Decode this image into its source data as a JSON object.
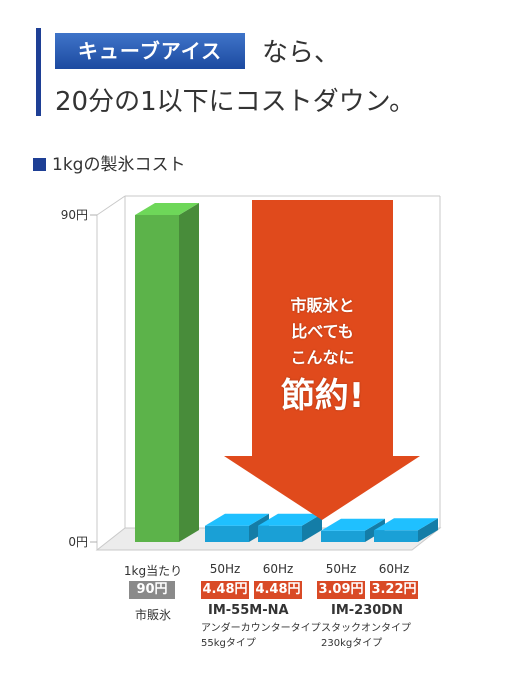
{
  "header": {
    "badge": "キューブアイス",
    "suffix": "なら、",
    "line2": "20分の1以下にコストダウン。"
  },
  "subtitle": "1kgの製氷コスト",
  "colors": {
    "accent": "#1e3f95",
    "green_bar": "#5cb34a",
    "blue_bar": "#1aa0d6",
    "arrow": "#e04a1c",
    "price_grey": "#8a8a8a",
    "price_red": "#d94a26"
  },
  "arrow_text": {
    "line1": "市販氷と",
    "line2": "比べても",
    "line3": "こんなに",
    "big": "節約!"
  },
  "labels": {
    "market_top": "1kg当たり",
    "market_bottom": "市販氷",
    "model1": "IM-55M-NA",
    "model1_desc1": "アンダーカウンタータイプ",
    "model1_desc2": "55kgタイプ",
    "model2": "IM-230DN",
    "model2_desc1": "スタックオンタイプ",
    "model2_desc2": "230kgタイプ"
  },
  "chart_data": {
    "type": "bar",
    "categories": [
      "1kg当たり",
      "50Hz",
      "60Hz",
      "50Hz",
      "60Hz"
    ],
    "values": [
      90,
      4.48,
      4.48,
      3.09,
      3.22
    ],
    "value_labels": [
      "90円",
      "4.48円",
      "4.48円",
      "3.09円",
      "3.22円"
    ],
    "yticks": [
      "90円",
      "0円"
    ],
    "ylim": [
      0,
      90
    ],
    "title": "1kgの製氷コスト",
    "grid": true
  }
}
